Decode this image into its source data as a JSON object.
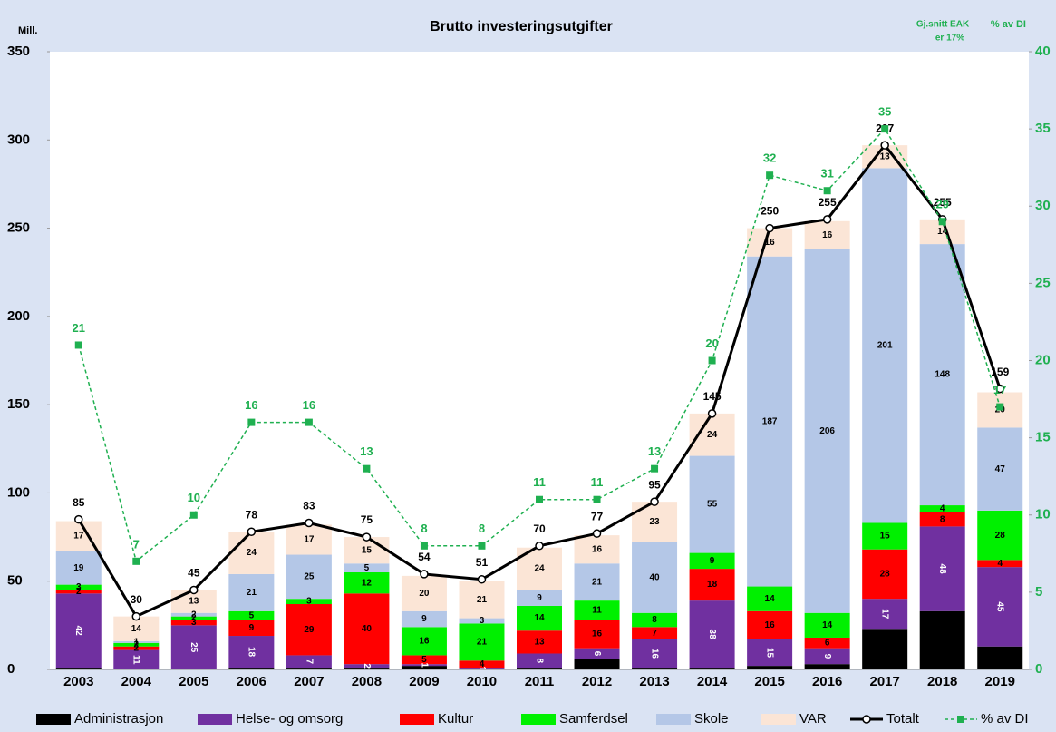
{
  "chart_data": {
    "type": "bar",
    "title": "Brutto investeringsutgifter",
    "y_label": "Mill.",
    "y2_label": "% av DI",
    "annotation": [
      "Gj.snitt EAK",
      "er 17%"
    ],
    "categories": [
      "2003",
      "2004",
      "2005",
      "2006",
      "2007",
      "2008",
      "2009",
      "2010",
      "2011",
      "2012",
      "2013",
      "2014",
      "2015",
      "2016",
      "2017",
      "2018",
      "2019"
    ],
    "ylim": [
      0,
      350
    ],
    "yticks": [
      0,
      50,
      100,
      150,
      200,
      250,
      300,
      350
    ],
    "y2lim": [
      0,
      40
    ],
    "y2ticks": [
      0,
      5,
      10,
      15,
      20,
      25,
      30,
      35,
      40
    ],
    "series": [
      {
        "name": "Administrasjon",
        "color": "#000000",
        "values": [
          1,
          0,
          0,
          1,
          1,
          1,
          2,
          0,
          1,
          6,
          1,
          1,
          2,
          3,
          23,
          33,
          13
        ]
      },
      {
        "name": "Helse- og omsorg",
        "color": "#7030a0",
        "values": [
          42,
          11,
          25,
          18,
          7,
          2,
          1,
          1,
          8,
          6,
          16,
          38,
          15,
          9,
          17,
          48,
          45
        ]
      },
      {
        "name": "Kultur",
        "color": "#ff0000",
        "values": [
          2,
          2,
          3,
          9,
          29,
          40,
          5,
          4,
          13,
          16,
          7,
          18,
          16,
          6,
          28,
          8,
          4
        ]
      },
      {
        "name": "Samferdsel",
        "color": "#00f000",
        "values": [
          3,
          2,
          2,
          5,
          3,
          12,
          16,
          21,
          14,
          11,
          8,
          9,
          14,
          14,
          15,
          4,
          28
        ]
      },
      {
        "name": "Skole",
        "color": "#b4c7e7",
        "values": [
          19,
          1,
          2,
          21,
          25,
          5,
          9,
          3,
          9,
          21,
          40,
          55,
          187,
          206,
          201,
          148,
          47
        ]
      },
      {
        "name": "VAR",
        "color": "#fbe5d6",
        "values": [
          17,
          14,
          13,
          24,
          17,
          15,
          20,
          21,
          24,
          16,
          23,
          24,
          16,
          16,
          13,
          14,
          20
        ]
      },
      {
        "name": "Totalt",
        "type": "line",
        "color": "#000000",
        "values": [
          85,
          30,
          45,
          78,
          83,
          75,
          54,
          51,
          70,
          77,
          95,
          145,
          250,
          255,
          297,
          255,
          159
        ]
      },
      {
        "name": "% av DI",
        "type": "line",
        "axis": "y2",
        "dashed": true,
        "color": "#1fb050",
        "values": [
          21,
          7,
          10,
          16,
          16,
          13,
          8,
          8,
          11,
          11,
          13,
          20,
          32,
          31,
          35,
          29,
          17
        ]
      }
    ]
  }
}
